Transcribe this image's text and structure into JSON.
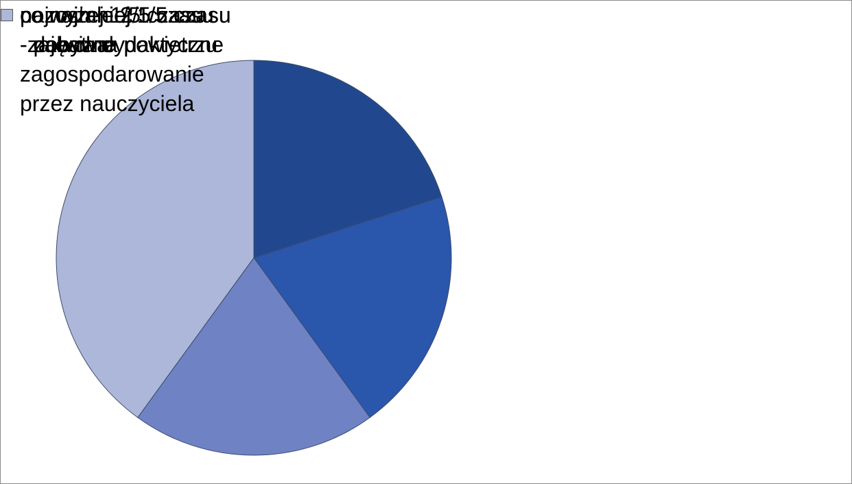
{
  "chart_data": {
    "type": "pie",
    "categories": [
      "co najmniej 1/5 czasu\n- zabawa",
      "co najmniej 1/5 czasu\n- pobyt na powietrzu",
      "najwyżej 1/5 czasu\n-zajęcia dydaktyczne",
      "pozostałe 2/5 czasu\n- dowolne\nzagospodarowanie\nprzez nauczyciela"
    ],
    "values": [
      20,
      20,
      20,
      40
    ],
    "colors": [
      "#21488f",
      "#2a56ac",
      "#6e82c4",
      "#adb7d9"
    ],
    "legend": "right"
  }
}
